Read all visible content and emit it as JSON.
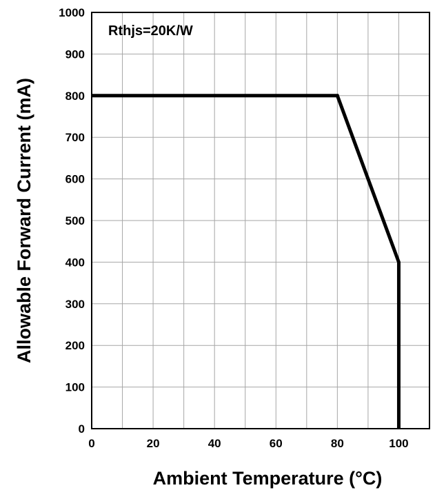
{
  "chart_data": {
    "type": "line",
    "xlabel": "Ambient Temperature (°C)",
    "ylabel": "Allowable Forward Current (mA)",
    "xlim": [
      0,
      110
    ],
    "ylim": [
      0,
      1000
    ],
    "x_ticks": [
      0,
      20,
      40,
      60,
      80,
      100
    ],
    "x_tick_labels": [
      "0",
      "20",
      "40",
      "60",
      "80",
      "100"
    ],
    "x_grid_step": 10,
    "y_ticks": [
      0,
      100,
      200,
      300,
      400,
      500,
      600,
      700,
      800,
      900,
      1000
    ],
    "y_tick_labels": [
      "0",
      "100",
      "200",
      "300",
      "400",
      "500",
      "600",
      "700",
      "800",
      "900",
      "1000"
    ],
    "grid": true,
    "legend": "none",
    "annotation": "Rthjs=20K/W",
    "series": [
      {
        "x": [
          0,
          80,
          100,
          100
        ],
        "y": [
          800,
          800,
          400,
          0
        ],
        "color": "#000000"
      }
    ]
  }
}
